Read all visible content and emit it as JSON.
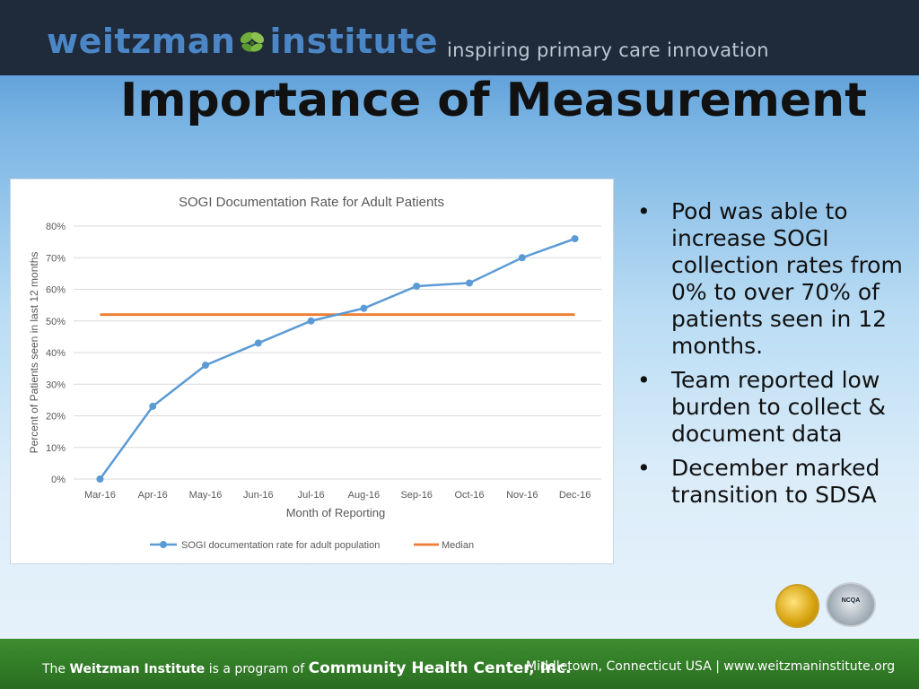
{
  "header": {
    "logo_part1": "weitzman",
    "logo_part2": "institute",
    "tagline": "inspiring primary care innovation"
  },
  "slide": {
    "title": "Importance of Measurement",
    "bullets": [
      "Pod was able to increase SOGI collection rates from 0% to over 70% of patients seen in 12 months.",
      "Team reported low burden to collect & document data",
      "December marked transition to SDSA"
    ]
  },
  "seals": {
    "ncqa_label": "NCQA"
  },
  "footer": {
    "left_prefix": "The",
    "left_org": "Weitzman Institute",
    "left_mid": "is a program of",
    "left_chc": "Community Health Center, Inc.",
    "right": "Middletown, Connecticut USA  |  www.weitzmaninstitute.org"
  },
  "colors": {
    "series": "#5b9bd5",
    "median": "#ed7d31"
  },
  "chart_data": {
    "type": "line",
    "title": "SOGI Documentation Rate for Adult Patients",
    "xlabel": "Month of Reporting",
    "ylabel": "Percent of Patients seen in last 12 months",
    "categories": [
      "Mar-16",
      "Apr-16",
      "May-16",
      "Jun-16",
      "Jul-16",
      "Aug-16",
      "Sep-16",
      "Oct-16",
      "Nov-16",
      "Dec-16"
    ],
    "yticks": [
      "0%",
      "10%",
      "20%",
      "30%",
      "40%",
      "50%",
      "60%",
      "70%",
      "80%"
    ],
    "ylim": [
      0,
      80
    ],
    "grid": true,
    "legend_position": "bottom",
    "series": [
      {
        "name": "SOGI documentation rate for adult population",
        "values": [
          0,
          23,
          36,
          43,
          50,
          54,
          61,
          62,
          70,
          76
        ],
        "markers": true
      },
      {
        "name": "Median",
        "values": [
          52,
          52,
          52,
          52,
          52,
          52,
          52,
          52,
          52,
          52
        ],
        "markers": false
      }
    ]
  }
}
